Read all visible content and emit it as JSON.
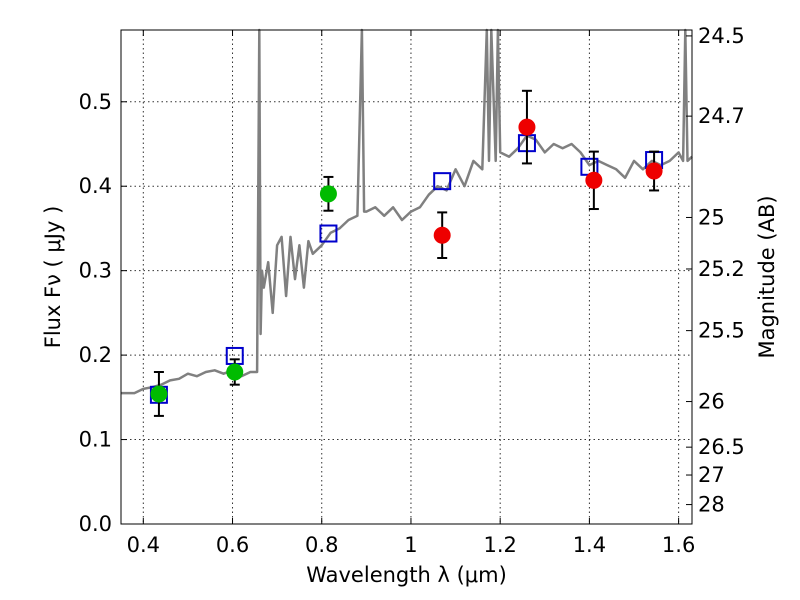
{
  "chart_data": {
    "type": "scatter",
    "xlabel": "Wavelength  λ (μm)",
    "ylabel": "Flux  Fν  ( μJy )",
    "y2label": "Magnitude (AB)",
    "xlim": [
      0.35,
      1.63
    ],
    "ylim": [
      0.0,
      0.585
    ],
    "grid": true,
    "x_ticks": [
      0.4,
      0.6,
      0.8,
      1.0,
      1.2,
      1.4,
      1.6
    ],
    "x_tick_labels": [
      "0.4",
      "0.6",
      "0.8",
      "1",
      "1.2",
      "1.4",
      "1.6"
    ],
    "y_ticks": [
      0.0,
      0.1,
      0.2,
      0.3,
      0.4,
      0.5
    ],
    "y_tick_labels": [
      "0.0",
      "0.1",
      "0.2",
      "0.3",
      "0.4",
      "0.5"
    ],
    "y2_ticks": [
      {
        "label": "24.5",
        "flux": 0.578
      },
      {
        "label": "24.7",
        "flux": 0.483
      },
      {
        "label": "25",
        "flux": 0.363
      },
      {
        "label": "25.2",
        "flux": 0.302
      },
      {
        "label": "25.5",
        "flux": 0.229
      },
      {
        "label": "26",
        "flux": 0.145
      },
      {
        "label": "26.5",
        "flux": 0.091
      },
      {
        "label": "27",
        "flux": 0.058
      },
      {
        "label": "28",
        "flux": 0.023
      }
    ],
    "series": [
      {
        "type": "line",
        "color": "#808080",
        "x": [
          0.35,
          0.38,
          0.4,
          0.42,
          0.44,
          0.46,
          0.48,
          0.5,
          0.52,
          0.54,
          0.56,
          0.58,
          0.6,
          0.62,
          0.64,
          0.655,
          0.66,
          0.663,
          0.666,
          0.67,
          0.68,
          0.69,
          0.7,
          0.71,
          0.72,
          0.73,
          0.74,
          0.75,
          0.76,
          0.77,
          0.78,
          0.8,
          0.82,
          0.84,
          0.86,
          0.88,
          0.89,
          0.895,
          0.9,
          0.92,
          0.94,
          0.96,
          0.98,
          1.0,
          1.02,
          1.04,
          1.06,
          1.08,
          1.1,
          1.12,
          1.14,
          1.16,
          1.17,
          1.175,
          1.18,
          1.19,
          1.195,
          1.2,
          1.22,
          1.24,
          1.26,
          1.28,
          1.3,
          1.32,
          1.34,
          1.36,
          1.38,
          1.4,
          1.42,
          1.44,
          1.46,
          1.48,
          1.5,
          1.52,
          1.54,
          1.56,
          1.58,
          1.6,
          1.61,
          1.615,
          1.62,
          1.63
        ],
        "y": [
          0.155,
          0.155,
          0.16,
          0.162,
          0.165,
          0.17,
          0.172,
          0.178,
          0.175,
          0.18,
          0.182,
          0.178,
          0.182,
          0.175,
          0.18,
          0.18,
          0.585,
          0.225,
          0.3,
          0.28,
          0.31,
          0.25,
          0.33,
          0.34,
          0.27,
          0.34,
          0.29,
          0.33,
          0.28,
          0.335,
          0.32,
          0.33,
          0.345,
          0.35,
          0.36,
          0.365,
          0.585,
          0.37,
          0.37,
          0.375,
          0.365,
          0.375,
          0.36,
          0.37,
          0.375,
          0.39,
          0.4,
          0.395,
          0.42,
          0.4,
          0.43,
          0.42,
          0.585,
          0.43,
          0.585,
          0.43,
          0.585,
          0.44,
          0.435,
          0.445,
          0.46,
          0.455,
          0.44,
          0.45,
          0.445,
          0.45,
          0.44,
          0.425,
          0.43,
          0.425,
          0.42,
          0.41,
          0.43,
          0.42,
          0.43,
          0.425,
          0.43,
          0.44,
          0.43,
          0.585,
          0.43,
          0.435
        ]
      },
      {
        "type": "scatter",
        "marker": "square",
        "color": "#0000cc",
        "x": [
          0.435,
          0.605,
          0.815,
          1.07,
          1.26,
          1.4,
          1.545
        ],
        "y": [
          0.153,
          0.199,
          0.344,
          0.406,
          0.451,
          0.423,
          0.431
        ]
      },
      {
        "type": "scatter",
        "marker": "circle",
        "color": "#00bb00",
        "x": [
          0.435,
          0.605,
          0.815
        ],
        "y": [
          0.154,
          0.18,
          0.391
        ],
        "yerr": [
          0.026,
          0.015,
          0.02
        ]
      },
      {
        "type": "scatter",
        "marker": "circle",
        "color": "#ee0000",
        "x": [
          1.07,
          1.26,
          1.41,
          1.545
        ],
        "y": [
          0.342,
          0.47,
          0.407,
          0.418
        ],
        "yerr": [
          0.027,
          0.043,
          0.034,
          0.023
        ]
      }
    ]
  }
}
